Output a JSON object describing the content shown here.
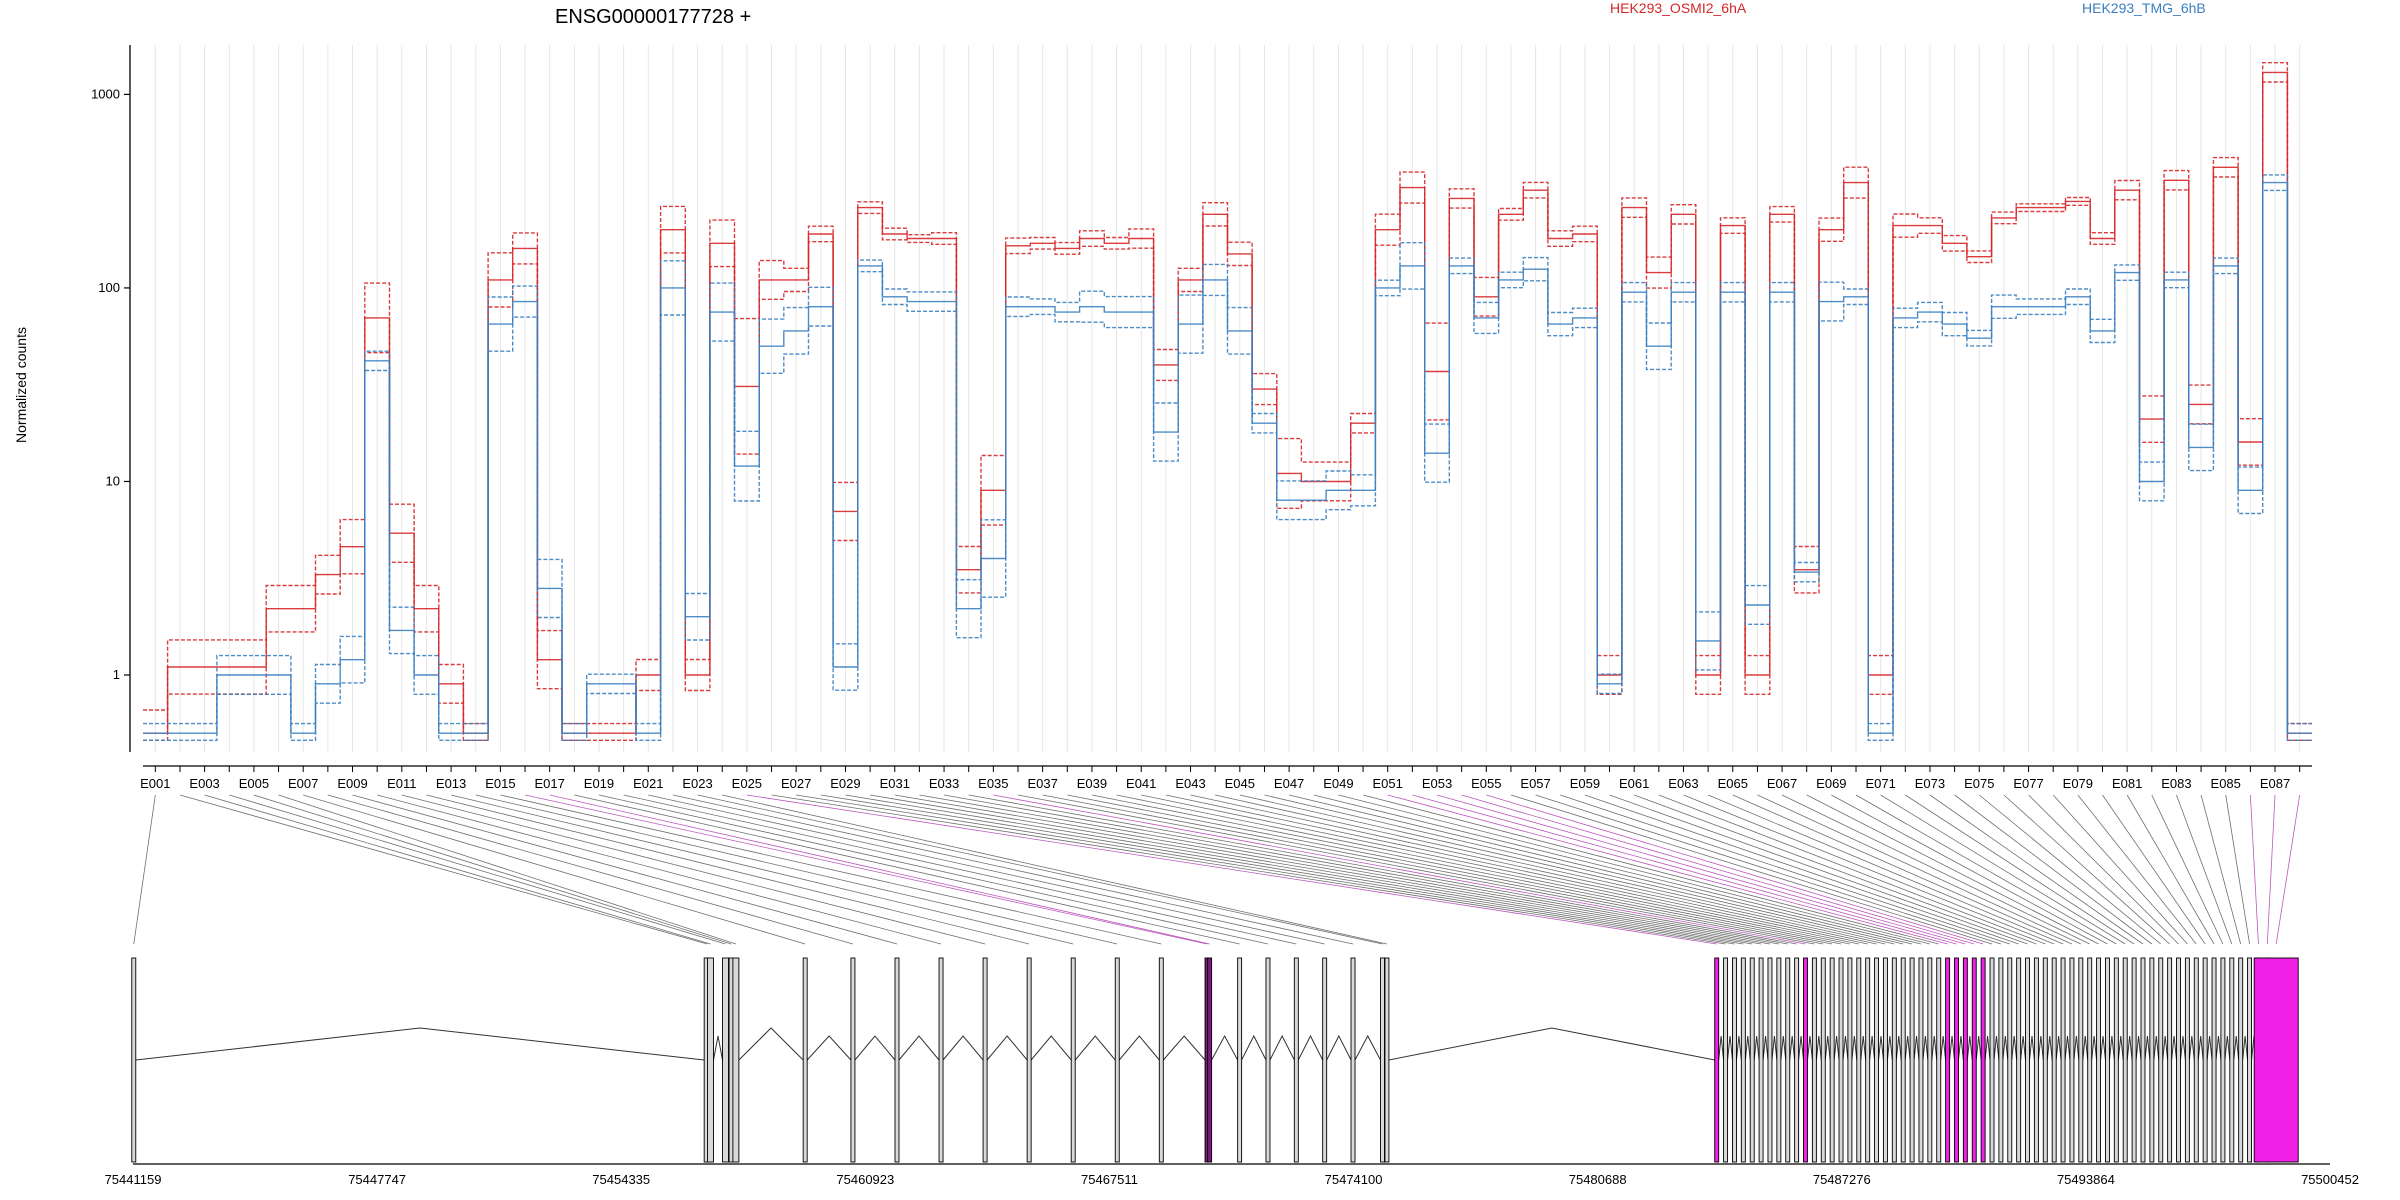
{
  "chart_data": {
    "type": "line",
    "title": "ENSG00000177728 +",
    "ylabel": "Normalized counts",
    "xlabel": "",
    "yscale": "log",
    "ylim": [
      0.4,
      1800
    ],
    "yticks": [
      1,
      10,
      100,
      1000
    ],
    "ytick_labels": [
      "1",
      "10",
      "100",
      "1000"
    ],
    "grid": "vertical lines at each exon",
    "legend": [
      {
        "label": "HEK293_OSMI2_6hA",
        "color": "#d62728"
      },
      {
        "label": "HEK293_TMG_6hB",
        "color": "#3a7fc1"
      }
    ],
    "exons": [
      "E001",
      "E002",
      "E003",
      "E004",
      "E005",
      "E006",
      "E007",
      "E008",
      "E009",
      "E010",
      "E011",
      "E012",
      "E013",
      "E014",
      "E015",
      "E016",
      "E017",
      "E018",
      "E019",
      "E020",
      "E021",
      "E022",
      "E023",
      "E024",
      "E025",
      "E026",
      "E027",
      "E028",
      "E029",
      "E030",
      "E031",
      "E032",
      "E033",
      "E034",
      "E035",
      "E036",
      "E037",
      "E038",
      "E039",
      "E040",
      "E041",
      "E042",
      "E043",
      "E044",
      "E045",
      "E046",
      "E047",
      "E048",
      "E049",
      "E050",
      "E051",
      "E052",
      "E053",
      "E054",
      "E055",
      "E056",
      "E057",
      "E058",
      "E059",
      "E060",
      "E061",
      "E062",
      "E063",
      "E064",
      "E065",
      "E066",
      "E067",
      "E068",
      "E069",
      "E070",
      "E071",
      "E072",
      "E073",
      "E074",
      "E075",
      "E076",
      "E077",
      "E078",
      "E079",
      "E080",
      "E081",
      "E082",
      "E083",
      "E084",
      "E085",
      "E086",
      "E087",
      "E088"
    ],
    "tick_labels": [
      "E001",
      "E003",
      "E005",
      "E007",
      "E009",
      "E011",
      "E013",
      "E015",
      "E017",
      "E019",
      "E021",
      "E023",
      "E025",
      "E027",
      "E029",
      "E031",
      "E033",
      "E035",
      "E037",
      "E039",
      "E041",
      "E043",
      "E045",
      "E047",
      "E049",
      "E051",
      "E053",
      "E055",
      "E057",
      "E059",
      "E061",
      "E063",
      "E065",
      "E067",
      "E069",
      "E071",
      "E073",
      "E075",
      "E077",
      "E079",
      "E081",
      "E083",
      "E085",
      "E087"
    ],
    "series": [
      {
        "name": "HEK293_OSMI2_6hA",
        "color": "#d62728",
        "values": [
          0.5,
          1.1,
          1.1,
          1.1,
          1.1,
          2.2,
          2.2,
          3.3,
          4.6,
          70,
          5.4,
          2.2,
          0.9,
          0.5,
          110,
          160,
          1.2,
          0.5,
          0.5,
          0.5,
          1.0,
          200,
          1.0,
          170,
          31,
          110,
          110,
          190,
          7,
          260,
          190,
          180,
          180,
          3.5,
          9,
          165,
          170,
          160,
          180,
          170,
          180,
          40,
          110,
          240,
          150,
          30,
          11,
          10,
          10,
          20,
          200,
          330,
          37,
          290,
          90,
          240,
          320,
          180,
          190,
          1.0,
          260,
          120,
          240,
          1.0,
          210,
          1.0,
          240,
          3.5,
          200,
          350,
          1.0,
          210,
          210,
          170,
          145,
          230,
          260,
          260,
          280,
          180,
          320,
          21,
          360,
          25,
          420,
          16,
          1300,
          0.5
        ],
        "spread": [
          0.12,
          0.14,
          0.14,
          0.14,
          0.14,
          0.12,
          0.12,
          0.1,
          0.14,
          0.18,
          0.15,
          0.12,
          0.1,
          0.05,
          0.14,
          0.08,
          0.15,
          0.05,
          0.05,
          0.05,
          0.08,
          0.12,
          0.08,
          0.12,
          0.35,
          0.1,
          0.06,
          0.04,
          0.15,
          0.03,
          0.03,
          0.02,
          0.03,
          0.12,
          0.18,
          0.04,
          0.03,
          0.03,
          0.04,
          0.03,
          0.05,
          0.08,
          0.06,
          0.06,
          0.06,
          0.08,
          0.18,
          0.1,
          0.1,
          0.05,
          0.08,
          0.08,
          0.25,
          0.05,
          0.1,
          0.03,
          0.04,
          0.04,
          0.04,
          0.1,
          0.05,
          0.08,
          0.05,
          0.1,
          0.04,
          0.1,
          0.04,
          0.12,
          0.06,
          0.08,
          0.1,
          0.06,
          0.04,
          0.04,
          0.03,
          0.03,
          0.02,
          0.02,
          0.02,
          0.03,
          0.05,
          0.12,
          0.05,
          0.1,
          0.05,
          0.12,
          0.05,
          0.05
        ]
      },
      {
        "name": "HEK293_TMG_6hB",
        "color": "#3a7fc1",
        "values": [
          0.5,
          0.5,
          0.5,
          1.0,
          1.0,
          1.0,
          0.5,
          0.9,
          1.2,
          42,
          1.7,
          1.0,
          0.5,
          0.5,
          65,
          85,
          2.8,
          0.5,
          0.9,
          0.9,
          0.5,
          100,
          2.0,
          75,
          12,
          50,
          60,
          80,
          1.1,
          130,
          90,
          85,
          85,
          2.2,
          4.0,
          80,
          80,
          75,
          80,
          75,
          75,
          18,
          65,
          110,
          60,
          20,
          8,
          8,
          9,
          9,
          100,
          130,
          14,
          130,
          70,
          110,
          125,
          65,
          70,
          0.9,
          95,
          50,
          95,
          1.5,
          95,
          2.3,
          95,
          3.4,
          85,
          90,
          0.5,
          70,
          75,
          65,
          55,
          80,
          80,
          80,
          90,
          60,
          120,
          10,
          110,
          15,
          130,
          9,
          350,
          0.5
        ],
        "spread": [
          0.05,
          0.05,
          0.05,
          0.1,
          0.1,
          0.1,
          0.05,
          0.1,
          0.12,
          0.05,
          0.12,
          0.1,
          0.05,
          0.05,
          0.14,
          0.08,
          0.15,
          0.05,
          0.05,
          0.05,
          0.05,
          0.14,
          0.12,
          0.15,
          0.18,
          0.14,
          0.12,
          0.1,
          0.12,
          0.03,
          0.04,
          0.05,
          0.05,
          0.15,
          0.2,
          0.05,
          0.04,
          0.05,
          0.08,
          0.08,
          0.08,
          0.15,
          0.15,
          0.08,
          0.12,
          0.05,
          0.1,
          0.1,
          0.1,
          0.08,
          0.04,
          0.12,
          0.15,
          0.04,
          0.08,
          0.04,
          0.06,
          0.06,
          0.05,
          0.05,
          0.05,
          0.12,
          0.05,
          0.15,
          0.05,
          0.1,
          0.05,
          0.05,
          0.1,
          0.04,
          0.05,
          0.05,
          0.05,
          0.06,
          0.04,
          0.06,
          0.04,
          0.04,
          0.04,
          0.06,
          0.04,
          0.1,
          0.04,
          0.12,
          0.04,
          0.12,
          0.04,
          0.05
        ]
      }
    ],
    "genomic_axis": {
      "start": 75441159,
      "end": 75500452,
      "tick_labels": [
        "75441159",
        "75447747",
        "75454335",
        "75460923",
        "75467511",
        "75474100",
        "75480688",
        "75487276",
        "75493864",
        "75500452"
      ]
    }
  }
}
